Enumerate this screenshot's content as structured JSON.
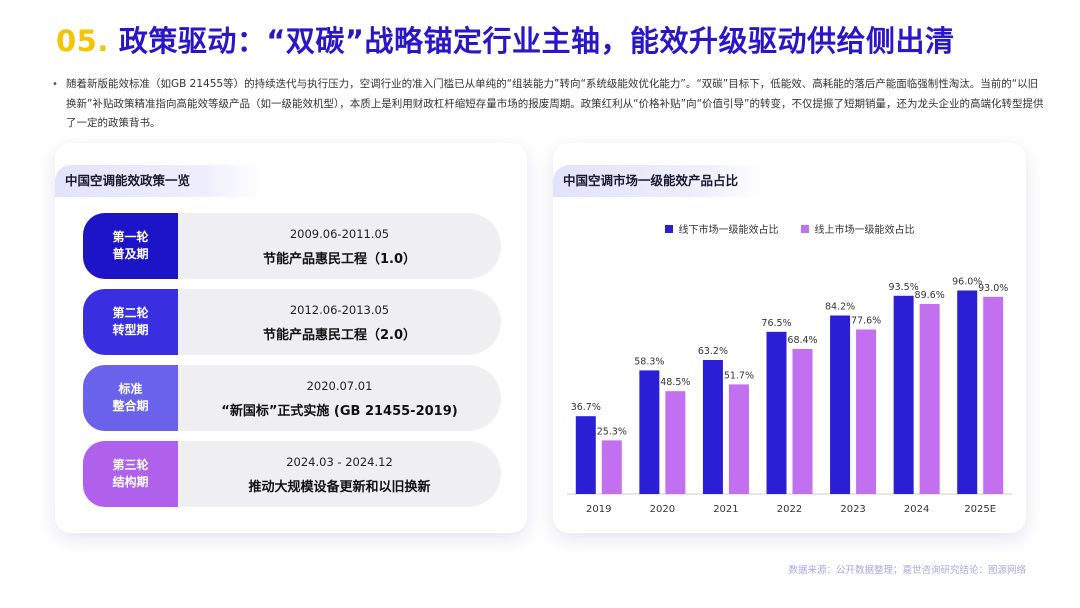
{
  "header": {
    "number": "05.",
    "title": "政策驱动：“双碳”战略锚定行业主轴，能效升级驱动供给侧出清"
  },
  "description": "随着新版能效标准（如GB 21455等）的持续迭代与执行压力，空调行业的准入门槛已从单纯的“组装能力”转向“系统级能效优化能力”。“双碳”目标下，低能效、高耗能的落后产能面临强制性淘汰。当前的“以旧换新”补贴政策精准指向高能效等级产品（如一级能效机型），本质上是利用财政杠杆缩短存量市场的报废周期。政策红利从“价格补贴”向“价值引导”的转变，不仅提振了短期销量，还为龙头企业的高端化转型提供了一定的政策背书。",
  "left_card": {
    "title": "中国空调能效政策一览",
    "policies": [
      {
        "stage": "第一轮\n普及期",
        "period": "2009.06-2011.05",
        "name": "节能产品惠民工程（1.0）",
        "color": "#1d14c8"
      },
      {
        "stage": "第二轮\n转型期",
        "period": "2012.06-2013.05",
        "name": "节能产品惠民工程（2.0）",
        "color": "#3a2fe0"
      },
      {
        "stage": "标准\n整合期",
        "period": "2020.07.01",
        "name": "“新国标”正式实施 (GB 21455-2019)",
        "color": "#6a62ea"
      },
      {
        "stage": "第三轮\n结构期",
        "period": "2024.03 - 2024.12",
        "name": "推动大规模设备更新和以旧换新",
        "color": "#b061ec"
      }
    ]
  },
  "right_card": {
    "title": "中国空调市场一级能效产品占比"
  },
  "chart_data": {
    "type": "bar",
    "title": "中国空调市场一级能效产品占比",
    "categories": [
      "2019",
      "2020",
      "2021",
      "2022",
      "2023",
      "2024",
      "2025E"
    ],
    "series": [
      {
        "name": "线下市场一级能效占比",
        "color": "#2b1fd6",
        "values": [
          36.7,
          58.3,
          63.2,
          76.5,
          84.2,
          93.5,
          96.0
        ],
        "labels": [
          "36.7%",
          "58.3%",
          "63.2%",
          "76.5%",
          "84.2%",
          "93.5%",
          "96.0%"
        ]
      },
      {
        "name": "线上市场一级能效占比",
        "color": "#c270f0",
        "values": [
          25.3,
          48.5,
          51.7,
          68.4,
          77.6,
          89.6,
          93.0
        ],
        "labels": [
          "25.3%",
          "48.5%",
          "51.7%",
          "68.4%",
          "77.6%",
          "89.6%",
          "93.0%"
        ]
      }
    ],
    "ylim": [
      0,
      100
    ],
    "legend": "top",
    "grid": false
  },
  "footer": {
    "source": "数据来源：公开数据整理；嘉世咨询研究结论：图源网络"
  }
}
